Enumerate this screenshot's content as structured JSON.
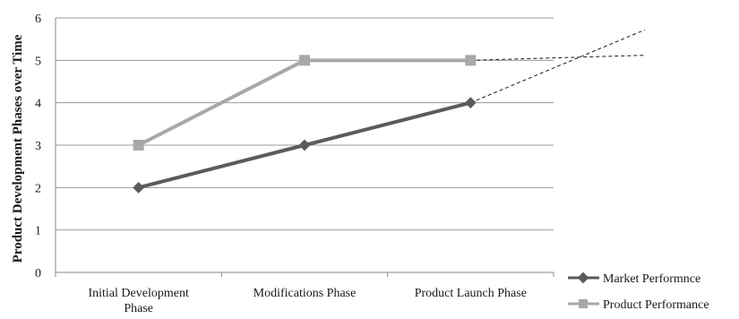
{
  "chart_data": {
    "type": "line",
    "title": "",
    "xlabel": "",
    "ylabel": "Product Development Phases over Time",
    "categories": [
      "Initial Development Phase",
      "Modifications Phase",
      "Product Launch Phase"
    ],
    "ylim": [
      0,
      6
    ],
    "yticks": [
      0,
      1,
      2,
      3,
      4,
      5,
      6
    ],
    "grid": true,
    "legend_position": "bottom-right",
    "series": [
      {
        "name": "Market Performnce",
        "values": [
          2,
          3,
          4
        ],
        "marker": "diamond",
        "color": "#5b5b5b"
      },
      {
        "name": "Product Performance",
        "values": [
          3,
          5,
          5
        ],
        "marker": "square",
        "color": "#a8a8a8"
      }
    ],
    "projections": [
      {
        "series": "Market Performnce",
        "from": [
          2,
          4
        ],
        "to": [
          3.05,
          5.72
        ],
        "style": "dashed"
      },
      {
        "series": "Product Performance",
        "from": [
          2,
          5
        ],
        "to": [
          3.05,
          5.12
        ],
        "style": "dashed"
      }
    ]
  }
}
